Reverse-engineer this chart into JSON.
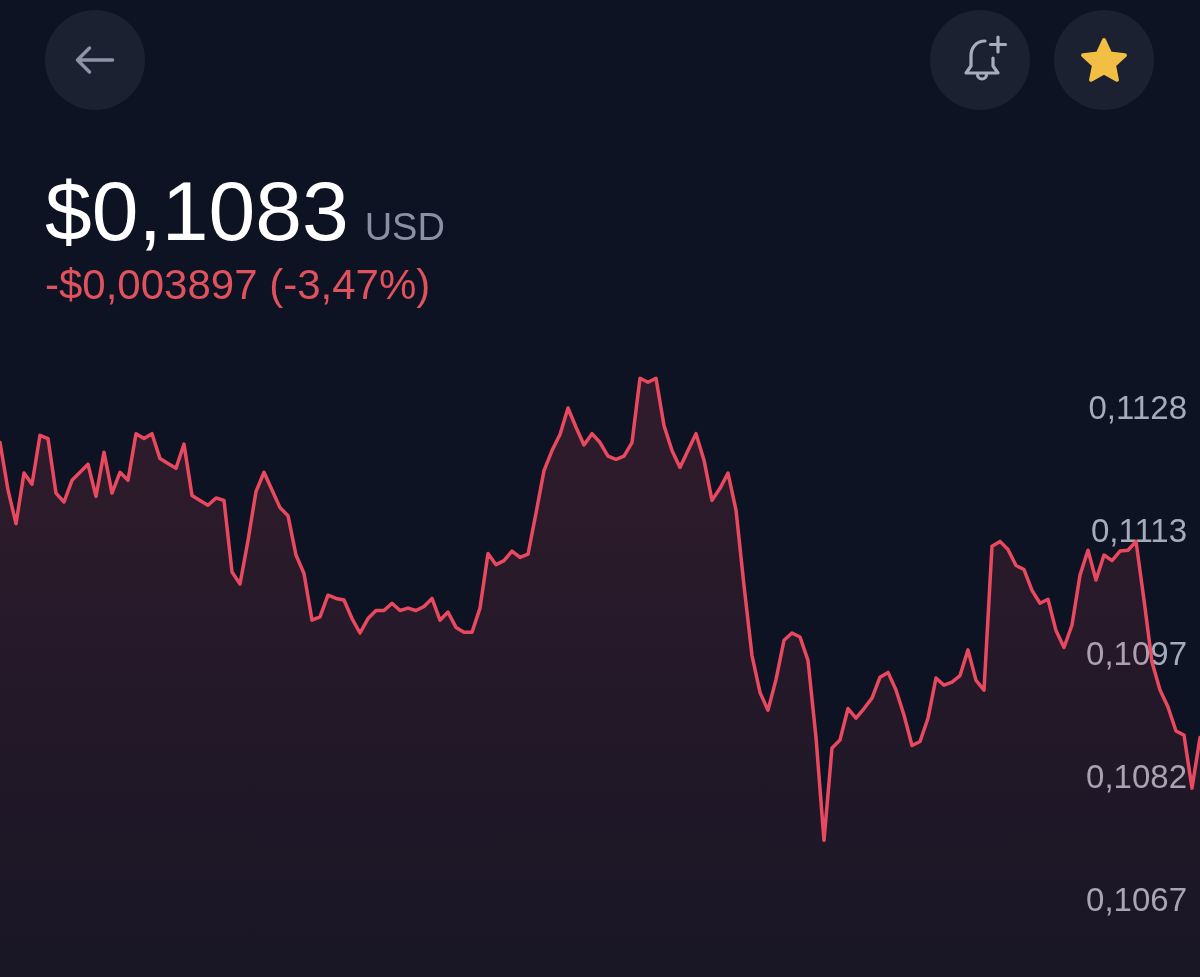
{
  "chart_data": {
    "type": "area",
    "title": "$0,1083 USD",
    "subtitle": "-$0,003897 (-3,47%)",
    "categories": [
      null,
      null,
      null,
      null,
      null,
      null,
      null,
      null,
      null,
      null,
      null,
      null,
      null,
      null,
      null,
      null,
      null,
      null,
      null,
      null,
      null,
      null,
      null,
      null,
      null,
      null,
      null,
      null,
      null,
      null,
      null,
      null,
      null,
      null,
      null,
      null,
      null,
      null,
      null,
      null,
      null,
      null,
      null,
      null,
      null,
      null,
      null,
      null,
      null,
      null,
      null,
      null,
      null,
      null,
      null,
      null,
      null,
      null,
      null,
      null,
      null,
      null,
      null,
      null,
      null,
      null,
      null,
      null,
      null,
      null,
      null,
      null,
      null,
      null,
      null,
      null,
      null,
      null,
      null,
      null,
      null,
      null,
      null,
      null,
      null,
      null,
      null,
      null,
      null,
      null,
      null,
      null,
      null,
      null,
      null,
      null,
      null,
      null,
      null,
      null,
      null,
      null,
      null,
      null,
      null,
      null,
      null,
      null,
      null,
      null,
      null,
      null,
      null,
      null,
      null,
      null,
      null,
      null,
      null,
      null,
      null,
      null,
      null,
      null,
      null,
      null,
      null,
      null,
      null,
      null,
      null,
      null,
      null,
      null,
      null,
      null,
      null,
      null,
      null,
      null,
      null,
      null,
      null,
      null,
      null,
      null,
      null,
      null,
      null,
      null,
      null
    ],
    "values": [
      0.11239,
      0.1118,
      0.11138,
      0.11201,
      0.11187,
      0.11248,
      0.11244,
      0.11176,
      0.11165,
      0.11192,
      0.11202,
      0.11212,
      0.11172,
      0.11227,
      0.11176,
      0.11202,
      0.11192,
      0.1125,
      0.11244,
      0.1125,
      0.11219,
      0.11213,
      0.11207,
      0.11237,
      0.11173,
      0.11167,
      0.11161,
      0.1117,
      0.11167,
      0.11078,
      0.11063,
      0.11117,
      0.11178,
      0.11202,
      0.1118,
      0.11158,
      0.11148,
      0.11099,
      0.11076,
      0.11018,
      0.11022,
      0.11049,
      0.11045,
      0.11043,
      0.1102,
      0.11002,
      0.1102,
      0.1103,
      0.1103,
      0.11039,
      0.1103,
      0.11033,
      0.1103,
      0.11035,
      0.11045,
      0.11018,
      0.11028,
      0.11009,
      0.11003,
      0.11003,
      0.11033,
      0.11101,
      0.11087,
      0.11092,
      0.11104,
      0.11096,
      0.111,
      0.11151,
      0.11204,
      0.11229,
      0.11249,
      0.11282,
      0.11258,
      0.11236,
      0.1125,
      0.11239,
      0.11222,
      0.11218,
      0.11222,
      0.11239,
      0.11319,
      0.11314,
      0.11319,
      0.1126,
      0.11229,
      0.11208,
      0.11229,
      0.1125,
      0.11217,
      0.11167,
      0.11182,
      0.11201,
      0.11155,
      0.11061,
      0.10974,
      0.10928,
      0.10906,
      0.10944,
      0.10993,
      0.11002,
      0.10997,
      0.10968,
      0.10872,
      0.10744,
      0.10859,
      0.10869,
      0.10908,
      0.10896,
      0.10908,
      0.10921,
      0.10947,
      0.10953,
      0.10931,
      0.109,
      0.10862,
      0.10867,
      0.10896,
      0.10946,
      0.10937,
      0.10941,
      0.10949,
      0.10981,
      0.10943,
      0.10931,
      0.1111,
      0.11116,
      0.11106,
      0.11086,
      0.11081,
      0.11055,
      0.11039,
      0.11044,
      0.11005,
      0.10984,
      0.11012,
      0.11074,
      0.11105,
      0.11068,
      0.11099,
      0.11092,
      0.11104,
      0.11105,
      0.11116,
      0.11043,
      0.10966,
      0.10931,
      0.1091,
      0.1088,
      0.10875,
      0.10809,
      0.10872
    ],
    "color": "#e9495f",
    "ylim": [
      0.10574,
      0.11379
    ],
    "yticks": [
      {
        "value": 0.10667,
        "label": "0,1067"
      },
      {
        "value": 0.1082,
        "label": "0,1082"
      },
      {
        "value": 0.10973,
        "label": "0,1097"
      },
      {
        "value": 0.11126,
        "label": "0,1113"
      },
      {
        "value": 0.11279,
        "label": "0,1128"
      }
    ],
    "tick_labels": "y",
    "marker": "none"
  }
}
